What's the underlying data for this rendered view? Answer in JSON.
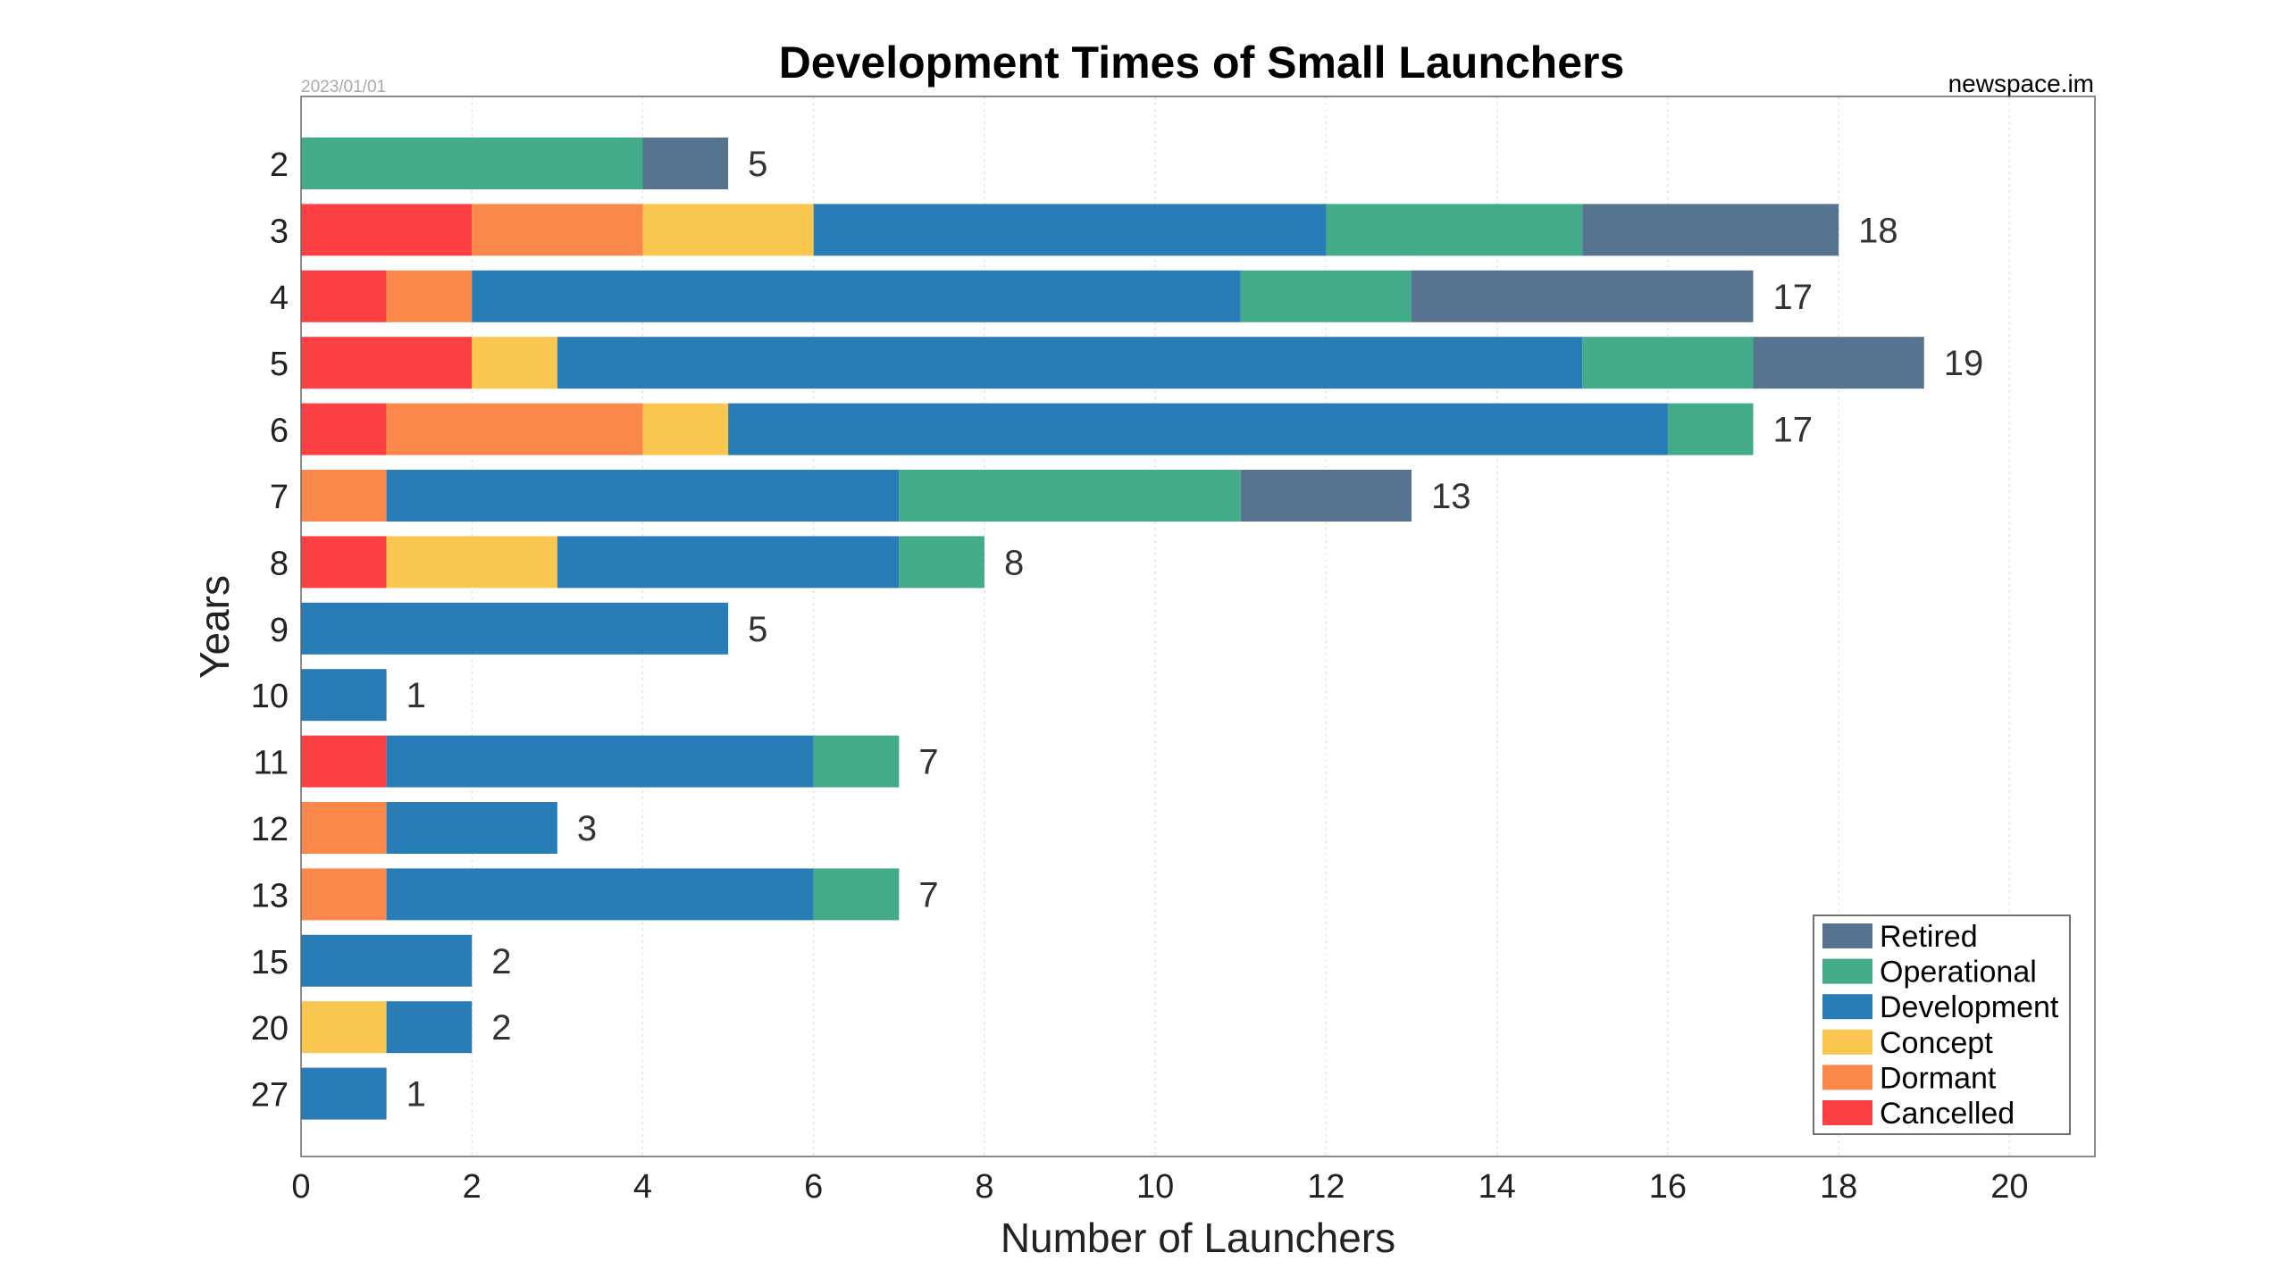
{
  "chart_data": {
    "type": "bar",
    "orientation": "horizontal",
    "stacked": true,
    "title": "Development Times of Small Launchers",
    "date": "2023/01/01",
    "source": "newspace.im",
    "xlabel": "Number of Launchers",
    "ylabel": "Years",
    "xlim": [
      0,
      21
    ],
    "xticks": [
      0,
      2,
      4,
      6,
      8,
      10,
      12,
      14,
      16,
      18,
      20
    ],
    "grid": "vertical dotted",
    "legend_position": "bottom-right",
    "categories": [
      "2",
      "3",
      "4",
      "5",
      "6",
      "7",
      "8",
      "9",
      "10",
      "11",
      "12",
      "13",
      "15",
      "20",
      "27"
    ],
    "totals": [
      5,
      18,
      17,
      19,
      17,
      13,
      8,
      5,
      1,
      7,
      3,
      7,
      2,
      2,
      1
    ],
    "series": [
      {
        "name": "Cancelled",
        "color": "#fc4043",
        "values": [
          0,
          2,
          1,
          2,
          1,
          0,
          1,
          0,
          0,
          1,
          0,
          0,
          0,
          0,
          0
        ]
      },
      {
        "name": "Dormant",
        "color": "#fa884b",
        "values": [
          0,
          2,
          1,
          0,
          3,
          1,
          0,
          0,
          0,
          0,
          1,
          1,
          0,
          0,
          0
        ]
      },
      {
        "name": "Concept",
        "color": "#f9c650",
        "values": [
          0,
          2,
          0,
          1,
          1,
          0,
          2,
          0,
          0,
          0,
          0,
          0,
          0,
          1,
          0
        ]
      },
      {
        "name": "Development",
        "color": "#287db7",
        "values": [
          0,
          6,
          9,
          12,
          11,
          6,
          4,
          5,
          1,
          5,
          2,
          5,
          2,
          1,
          1
        ]
      },
      {
        "name": "Operational",
        "color": "#43ab89",
        "values": [
          4,
          3,
          2,
          2,
          1,
          4,
          1,
          0,
          0,
          1,
          0,
          1,
          0,
          0,
          0
        ]
      },
      {
        "name": "Retired",
        "color": "#56738f",
        "values": [
          1,
          3,
          4,
          2,
          0,
          2,
          0,
          0,
          0,
          0,
          0,
          0,
          0,
          0,
          0
        ]
      }
    ],
    "legend_order": [
      "Retired",
      "Operational",
      "Development",
      "Concept",
      "Dormant",
      "Cancelled"
    ]
  }
}
